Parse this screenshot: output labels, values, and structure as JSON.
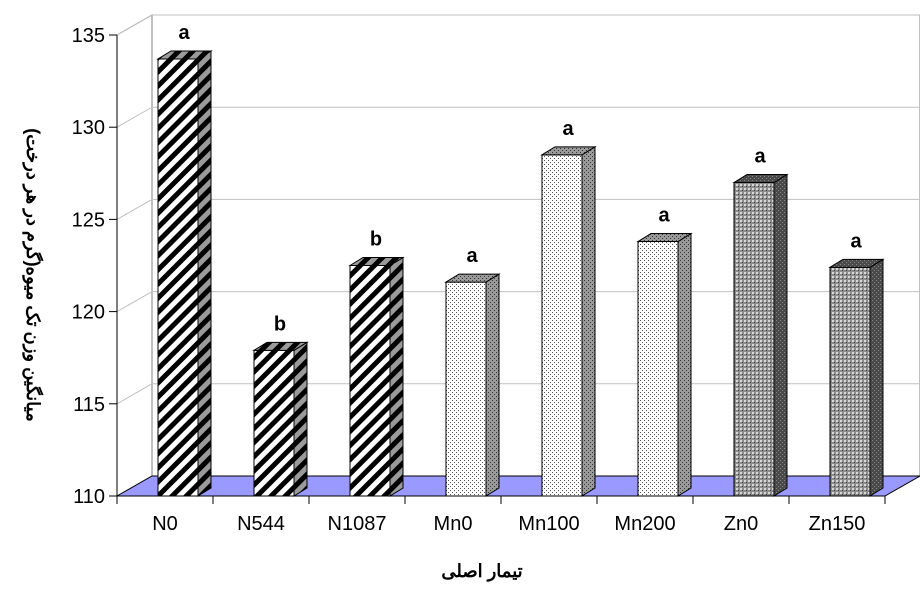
{
  "chart_data": {
    "type": "bar",
    "categories": [
      "N0",
      "N544",
      "N1087",
      "Mn0",
      "Mn100",
      "Mn200",
      "Zn0",
      "Zn150"
    ],
    "values": [
      133.7,
      117.9,
      122.5,
      121.6,
      128.5,
      123.8,
      127.0,
      122.4
    ],
    "significance_letters": [
      "a",
      "b",
      "b",
      "a",
      "a",
      "a",
      "a",
      "a"
    ],
    "xlabel": "تیمار اصلی",
    "ylabel": "میانگین وزن تک میوه(گرم در هر درخت)",
    "ylim": [
      110,
      135
    ],
    "yticks": [
      110,
      115,
      120,
      125,
      130,
      135
    ],
    "grid": true,
    "legend": "none",
    "three_d": true,
    "fills": [
      "diagonal-stripes",
      "diagonal-stripes",
      "diagonal-stripes",
      "light-dots",
      "light-dots",
      "light-dots",
      "dark-dots",
      "dark-dots"
    ],
    "colors": {
      "floor": "#9999ff",
      "wall_grid": "#c0c0c0",
      "bar_edge": "#000000"
    }
  }
}
